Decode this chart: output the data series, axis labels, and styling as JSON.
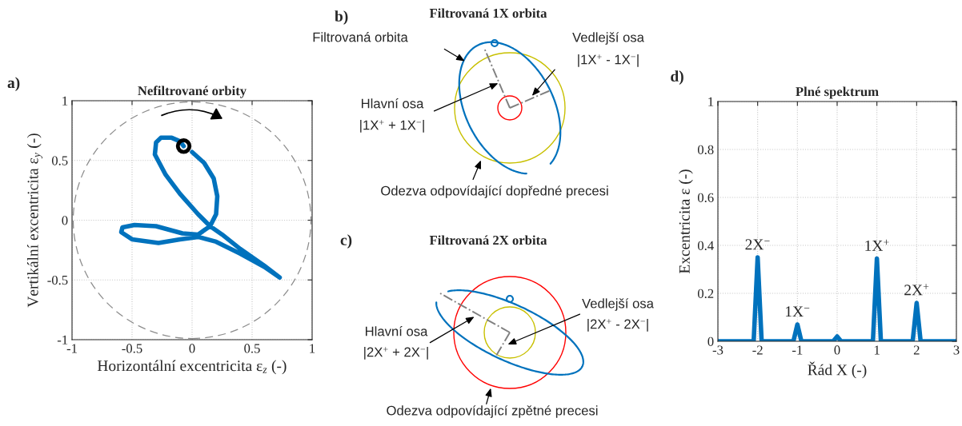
{
  "chart_data": [
    {
      "type": "line",
      "title": "Nefiltrované orbity",
      "xlabel": "Horizontální excentricita ε$_{z}$ (-)",
      "ylabel": "Vertikální excentricita ε$_{y}$ (-)",
      "annotations": [
        "a)"
      ],
      "xlim": [
        -1,
        1
      ],
      "ylim": [
        -1,
        1
      ],
      "xticks": [
        -1,
        -0.5,
        0,
        0.5,
        1
      ],
      "yticks": [
        -1,
        -0.5,
        0,
        0.5,
        1
      ],
      "grid": true,
      "series": [
        {
          "type": "line",
          "color": "#0072bd",
          "x": [
            0.0,
            0.1,
            0.18,
            0.21,
            0.2,
            0.15,
            0.05,
            -0.08,
            -0.3,
            -0.48,
            -0.58,
            -0.59,
            -0.5,
            -0.28,
            -0.1,
            0.05,
            0.2,
            0.4,
            0.6,
            0.73,
            0.6,
            0.4,
            0.25,
            0.15,
            0.05,
            -0.1,
            -0.22,
            -0.31,
            -0.3,
            -0.26,
            -0.17,
            -0.1,
            -0.07
          ],
          "values": [
            0.57,
            0.48,
            0.35,
            0.2,
            0.05,
            -0.05,
            -0.12,
            -0.11,
            -0.05,
            -0.04,
            -0.06,
            -0.1,
            -0.16,
            -0.19,
            -0.16,
            -0.14,
            -0.18,
            -0.28,
            -0.39,
            -0.48,
            -0.38,
            -0.24,
            -0.12,
            -0.05,
            0.05,
            0.22,
            0.38,
            0.55,
            0.65,
            0.69,
            0.69,
            0.66,
            0.62
          ]
        },
        {
          "type": "scatter",
          "color": "#000000",
          "marker": "circle",
          "x": [
            -0.07
          ],
          "values": [
            0.62
          ]
        }
      ]
    },
    {
      "type": "other",
      "title": "Filtrovaná 1X orbita",
      "annotations": [
        "b)",
        "Filtrovaná orbita",
        "Vedlejší osa",
        "|1X$^{+}$ - 1X$^{−}$|",
        "Hlavní osa",
        "|1X$^{+}$ + 1X$^{−}$|",
        "Odezva odpovídající dopředné precesi"
      ]
    },
    {
      "type": "other",
      "title": "Filtrovaná 2X orbita",
      "annotations": [
        "c)",
        "Vedlejší osa",
        "|2X$^{+}$ - 2X$^{−}$|",
        "Hlavní osa",
        "|2X$^{+}$ + 2X$^{−}$|",
        "Odezva odpovídající zpětné precesi"
      ]
    },
    {
      "type": "line",
      "title": "Plné spektrum",
      "xlabel": "Řád X (-)",
      "ylabel": "Excentricita ε (-)",
      "xlim": [
        -3,
        3
      ],
      "ylim": [
        0,
        1
      ],
      "xticks": [
        -3,
        -2,
        -1,
        0,
        1,
        2,
        3
      ],
      "yticks": [
        0,
        0.2,
        0.4,
        0.6,
        0.8,
        1
      ],
      "grid": true,
      "annotations": [
        "d)",
        {
          "text": "2X$^{−}$",
          "x": -2,
          "y": 0.35
        },
        {
          "text": "1X$^{−}$",
          "x": -1,
          "y": 0.07
        },
        {
          "text": "1X$^{+}$",
          "x": 1,
          "y": 0.345
        },
        {
          "text": "2X$^{+}$",
          "x": 2,
          "y": 0.16
        }
      ],
      "series": [
        {
          "type": "line",
          "color": "#0072bd",
          "x": [
            -3,
            -2.1,
            -2,
            -1.9,
            -1.1,
            -1,
            -0.9,
            -0.1,
            0,
            0.1,
            0.9,
            1,
            1.1,
            1.9,
            2,
            2.1,
            3
          ],
          "values": [
            0,
            0,
            0.35,
            0,
            0,
            0.07,
            0,
            0,
            0.02,
            0,
            0,
            0.345,
            0,
            0,
            0.16,
            0,
            0
          ]
        }
      ]
    }
  ]
}
